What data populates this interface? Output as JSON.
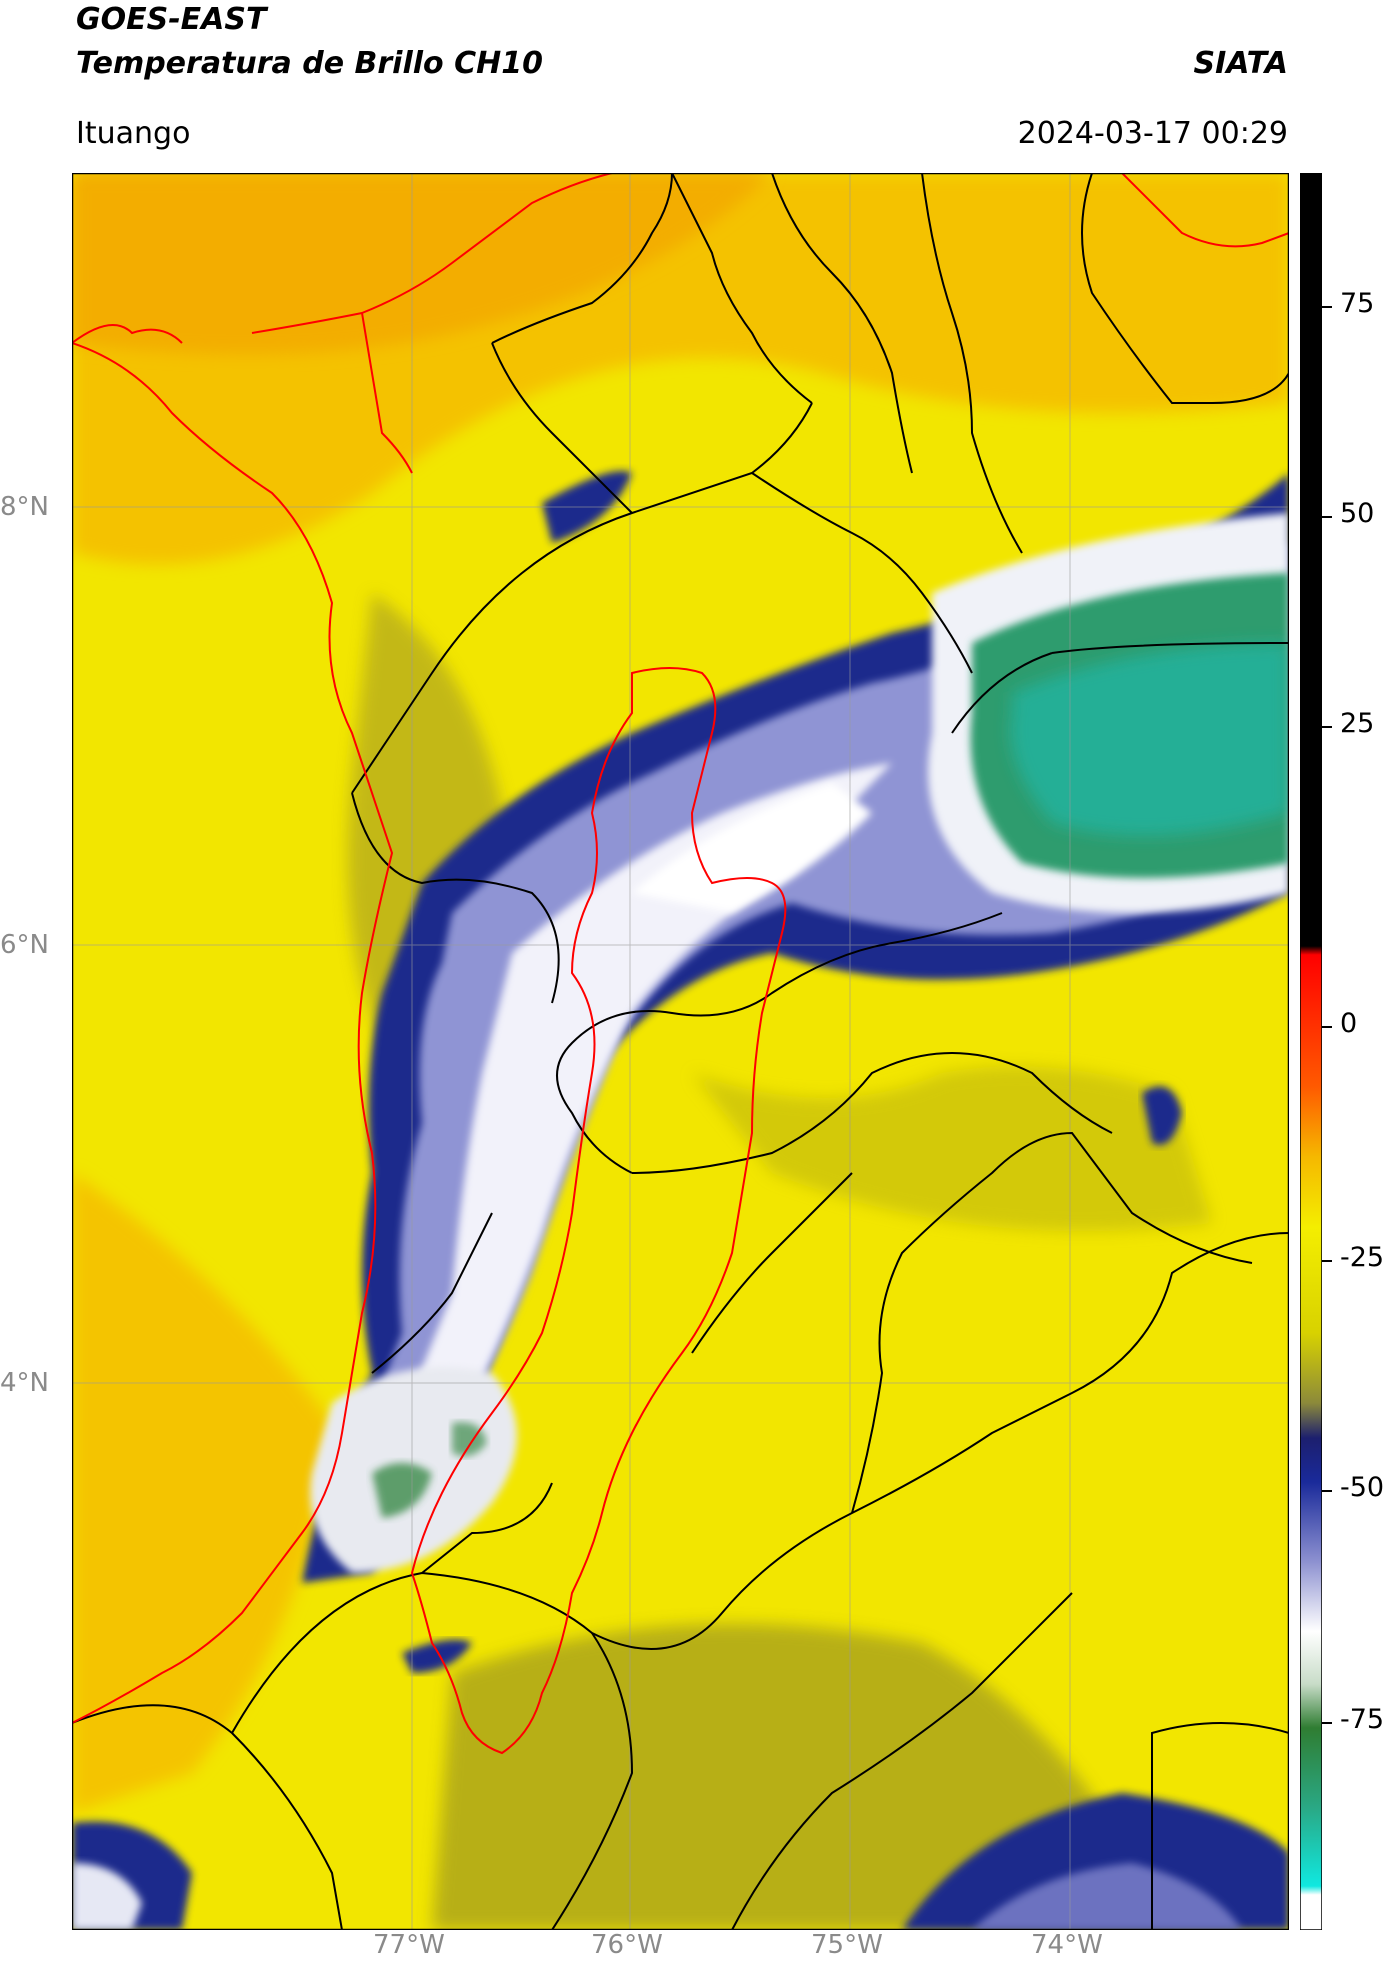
{
  "header": {
    "satellite": "GOES-EAST",
    "product": "Temperatura de Brillo CH10",
    "brand": "SIATA",
    "location": "Ituango",
    "datetime": "2024-03-17 00:29"
  },
  "map": {
    "lat_labels": [
      "8°N",
      "6°N",
      "4°N"
    ],
    "lon_labels": [
      "77°W",
      "76°W",
      "75°W",
      "74°W"
    ],
    "gridlines": true,
    "colors": {
      "warm_orange": "#f5b400",
      "yellow": "#f2ea00",
      "olive": "#9c9a2a",
      "cold_navy": "#1e2a8c",
      "lavender": "#b8bce6",
      "white": "#ffffff",
      "green": "#2e8b57",
      "teal": "#20b5a0",
      "country_border": "#ff0000",
      "department_border": "#000000"
    }
  },
  "colorbar": {
    "ticks": [
      "75",
      "50",
      "25",
      "0",
      "-25",
      "-50",
      "-75"
    ],
    "tick_values": [
      75,
      50,
      25,
      0,
      -25,
      -50,
      -75
    ],
    "range": [
      -90,
      90
    ]
  }
}
